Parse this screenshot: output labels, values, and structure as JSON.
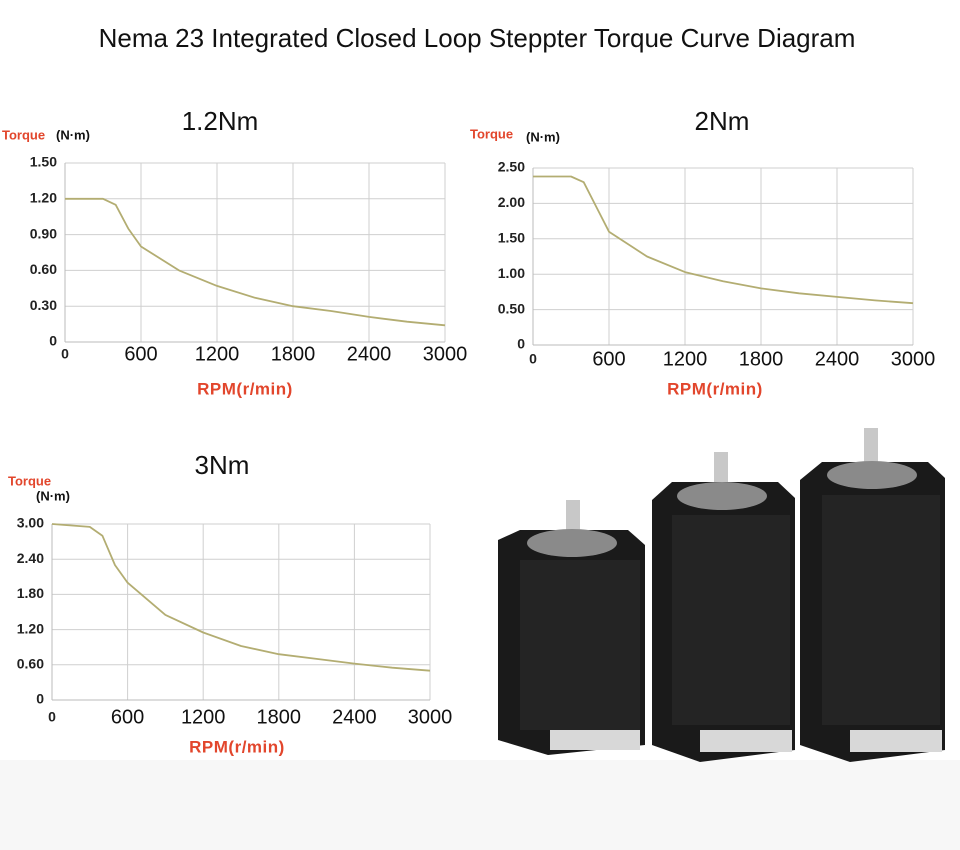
{
  "title": "Nema 23 Integrated Closed Loop Steppter Torque Curve Diagram",
  "chart_data": [
    {
      "type": "line",
      "title": "1.2Nm",
      "y_label": "Torque",
      "y_unit": "(N·m)",
      "x_label": "RPM(r/min)",
      "x": [
        0,
        300,
        400,
        500,
        600,
        900,
        1200,
        1500,
        1800,
        2100,
        2400,
        2700,
        3000
      ],
      "values": [
        1.2,
        1.2,
        1.15,
        0.95,
        0.8,
        0.6,
        0.47,
        0.37,
        0.3,
        0.26,
        0.21,
        0.17,
        0.14
      ],
      "color": "#b3ad72",
      "xlim": [
        0,
        3000
      ],
      "ylim": [
        0,
        1.5
      ],
      "xticks": [
        0,
        600,
        1200,
        1800,
        2400,
        3000
      ],
      "yticks": [
        0,
        {
          "value": 0.3,
          "label": "0.30"
        },
        {
          "value": 0.6,
          "label": "0.60"
        },
        {
          "value": 0.9,
          "label": "0.90"
        },
        {
          "value": 1.2,
          "label": "1.20"
        },
        {
          "value": 1.5,
          "label": "1.50"
        }
      ],
      "grid": true
    },
    {
      "type": "line",
      "title": "2Nm",
      "y_label": "Torque",
      "y_unit": "(N·m)",
      "x_label": "RPM(r/min)",
      "x": [
        0,
        300,
        400,
        500,
        600,
        900,
        1200,
        1500,
        1800,
        2100,
        2400,
        2700,
        3000
      ],
      "values": [
        2.38,
        2.38,
        2.3,
        1.95,
        1.6,
        1.25,
        1.03,
        0.9,
        0.8,
        0.73,
        0.68,
        0.63,
        0.59
      ],
      "color": "#b3ad72",
      "xlim": [
        0,
        3000
      ],
      "ylim": [
        0,
        2.5
      ],
      "xticks": [
        0,
        600,
        1200,
        1800,
        2400,
        3000
      ],
      "yticks": [
        0,
        {
          "value": 0.5,
          "label": "0.50"
        },
        {
          "value": 1,
          "label": "1.00"
        },
        {
          "value": 1.5,
          "label": "1.50"
        },
        {
          "value": 2,
          "label": "2.00"
        },
        {
          "value": 2.5,
          "label": "2.50"
        }
      ],
      "grid": true
    },
    {
      "type": "line",
      "title": "3Nm",
      "y_label": "Torque",
      "y_unit": "(N·m)",
      "x_label": "RPM(r/min)",
      "x": [
        0,
        300,
        400,
        500,
        600,
        900,
        1200,
        1500,
        1800,
        2100,
        2400,
        2700,
        3000
      ],
      "values": [
        3.0,
        2.95,
        2.8,
        2.3,
        2.0,
        1.45,
        1.15,
        0.92,
        0.78,
        0.7,
        0.62,
        0.55,
        0.5
      ],
      "color": "#b3ad72",
      "xlim": [
        0,
        3000
      ],
      "ylim": [
        0,
        3
      ],
      "xticks": [
        0,
        600,
        1200,
        1800,
        2400,
        3000
      ],
      "yticks": [
        0,
        {
          "value": 0.6,
          "label": "0.60"
        },
        {
          "value": 1.2,
          "label": "1.20"
        },
        {
          "value": 1.8,
          "label": "1.80"
        },
        {
          "value": 2.4,
          "label": "2.40"
        },
        {
          "value": 3,
          "label": "3.00"
        }
      ],
      "grid": true
    }
  ]
}
